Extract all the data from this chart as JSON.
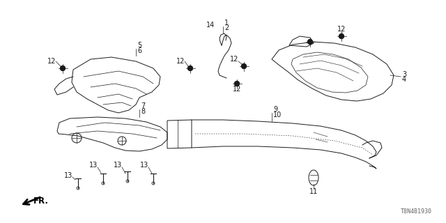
{
  "background_color": "#ffffff",
  "part_number": "T8N4B1930",
  "color": "#1a1a1a",
  "lw": 0.7
}
